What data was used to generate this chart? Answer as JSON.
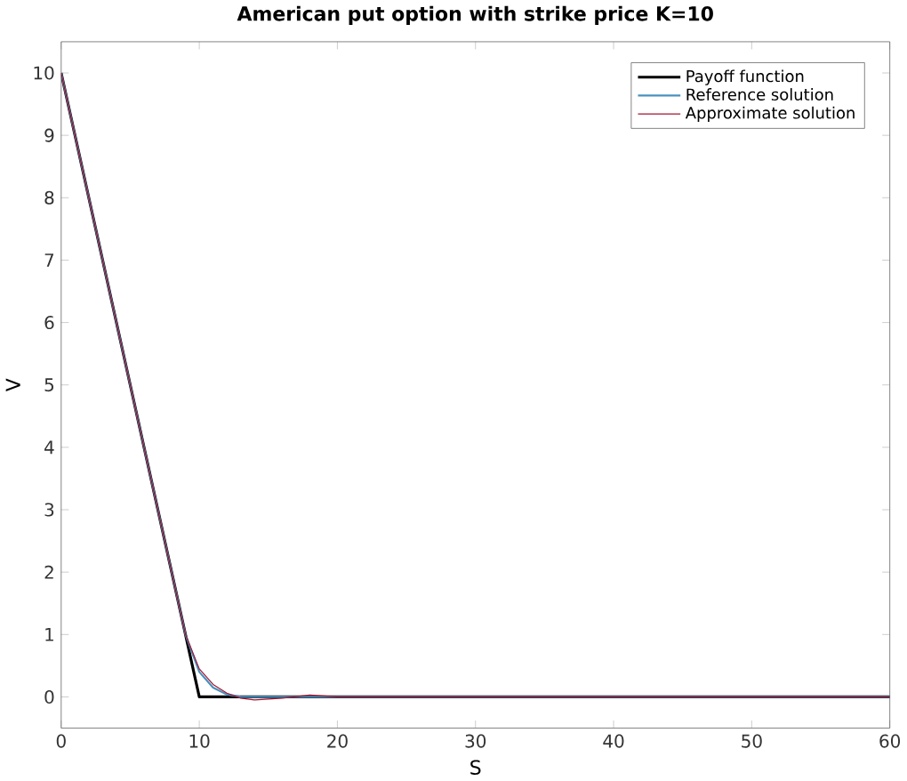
{
  "chart_data": {
    "type": "line",
    "title": "American put option with strike price K=10",
    "xlabel": "S",
    "ylabel": "V",
    "xlim": [
      0,
      60
    ],
    "ylim": [
      -0.5,
      10.5
    ],
    "xticks": [
      0,
      10,
      20,
      30,
      40,
      50,
      60
    ],
    "yticks": [
      0,
      1,
      2,
      3,
      4,
      5,
      6,
      7,
      8,
      9,
      10
    ],
    "grid": false,
    "legend": "top right",
    "marker": "none",
    "line_style": "solid",
    "series": [
      {
        "name": "Payoff function",
        "color": "#000000",
        "x": [
          0,
          10,
          60
        ],
        "values": [
          10,
          0,
          0
        ]
      },
      {
        "name": "Reference solution",
        "color": "#4a90bd",
        "x": [
          0,
          9,
          10,
          11,
          12,
          13,
          60
        ],
        "values": [
          10,
          1.0,
          0.4,
          0.15,
          0.04,
          0,
          0
        ]
      },
      {
        "name": "Approximate solution",
        "color": "#a2142f",
        "x": [
          0,
          9,
          10,
          11,
          12,
          13,
          14,
          16,
          18,
          20,
          22,
          60
        ],
        "values": [
          10,
          1.0,
          0.45,
          0.2,
          0.06,
          -0.02,
          -0.05,
          -0.02,
          0.03,
          0,
          0,
          0
        ]
      }
    ]
  }
}
